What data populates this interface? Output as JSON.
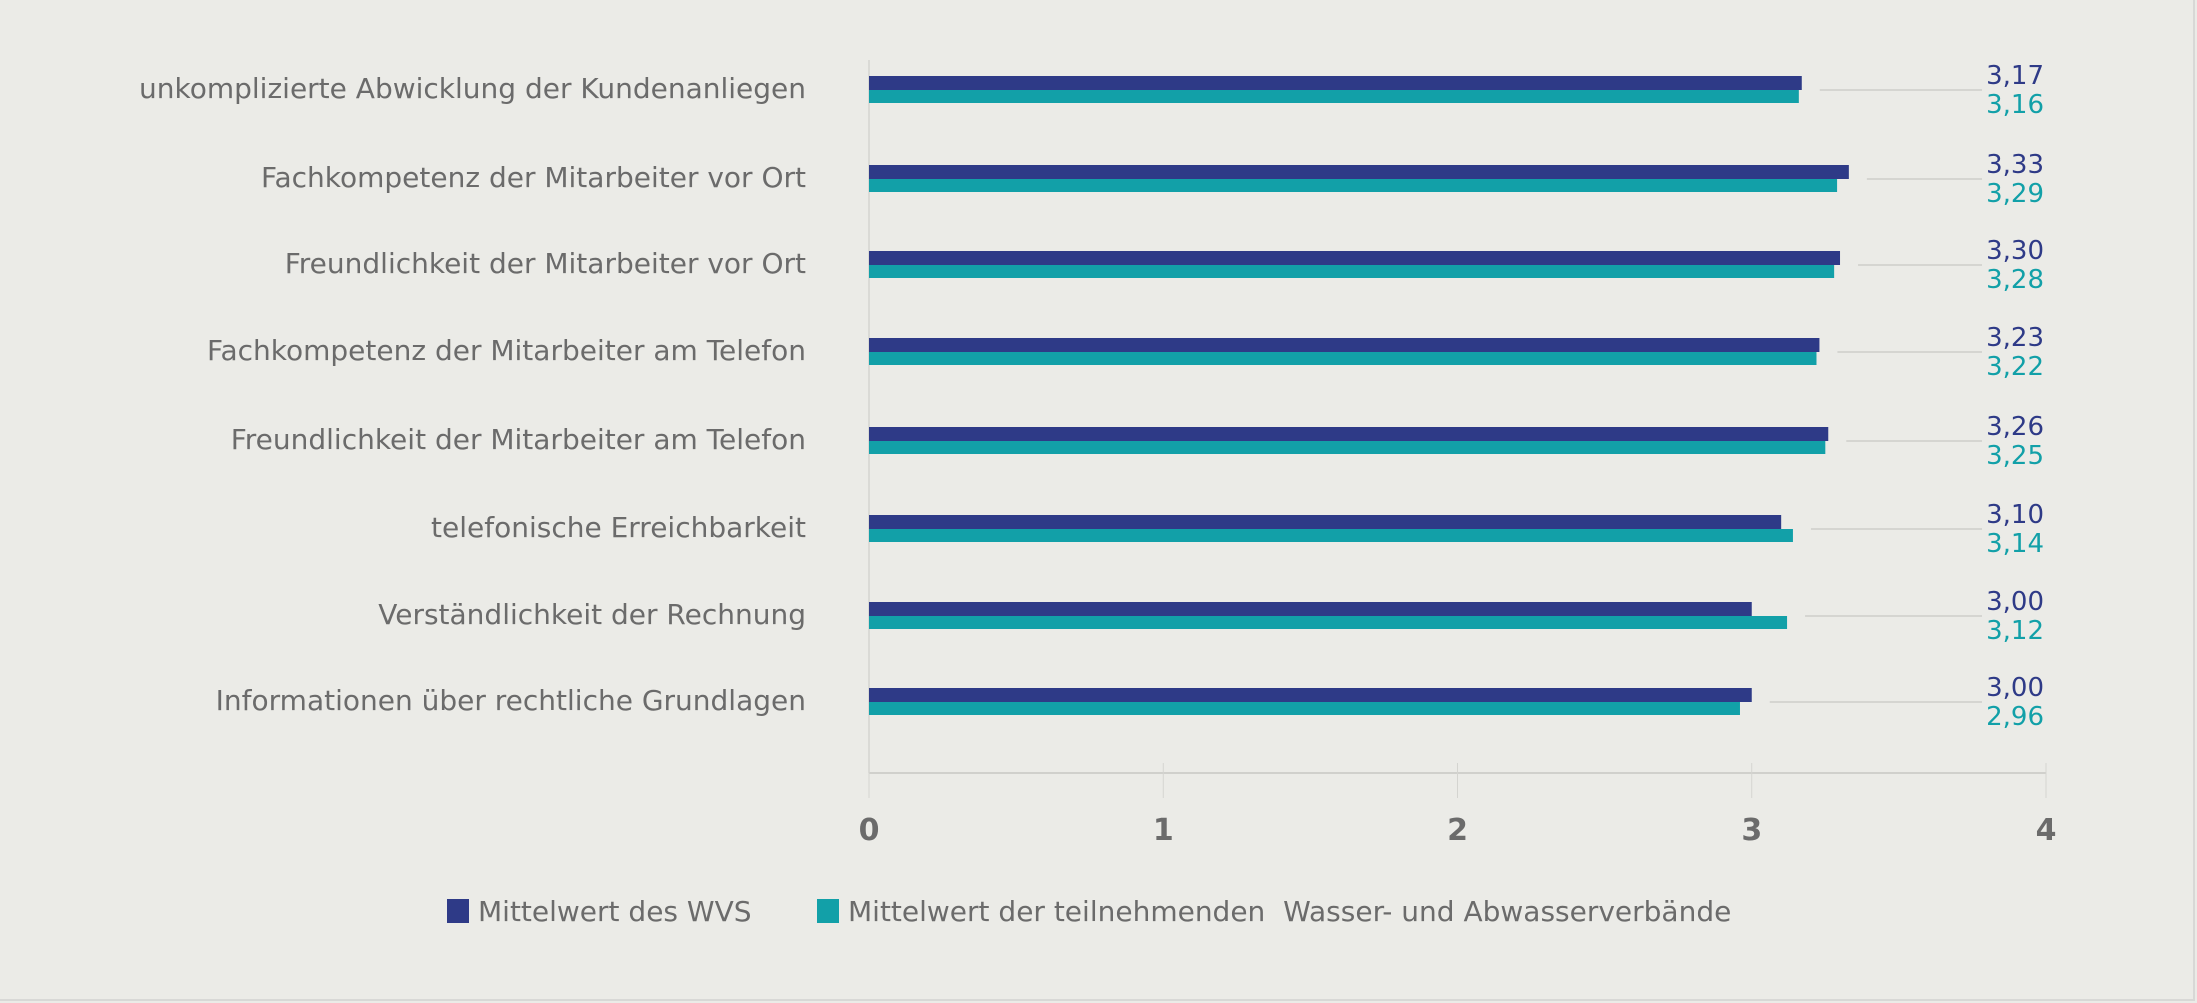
{
  "chart_data": {
    "type": "bar",
    "orientation": "horizontal",
    "categories": [
      "unkomplizierte Abwicklung der Kundenanliegen",
      "Fachkompetenz der Mitarbeiter vor Ort",
      "Freundlichkeit der Mitarbeiter vor Ort",
      "Fachkompetenz der Mitarbeiter am Telefon",
      "Freundlichkeit der Mitarbeiter am Telefon",
      "telefonische Erreichbarkeit",
      "Verständlichkeit der Rechnung",
      "Informationen über rechtliche Grundlagen"
    ],
    "series": [
      {
        "name": "Mittelwert des WVS",
        "color": "#2e3a87",
        "values": [
          3.17,
          3.33,
          3.3,
          3.23,
          3.26,
          3.1,
          3.0,
          3.0
        ],
        "labels": [
          "3,17",
          "3,33",
          "3,30",
          "3,23",
          "3,26",
          "3,10",
          "3,00",
          "3,00"
        ]
      },
      {
        "name": "Mittelwert der teilnehmenden  Wasser- und Abwasserverbände",
        "color": "#12a0a8",
        "values": [
          3.16,
          3.29,
          3.28,
          3.22,
          3.25,
          3.14,
          3.12,
          2.96
        ],
        "labels": [
          "3,16",
          "3,29",
          "3,28",
          "3,22",
          "3,25",
          "3,14",
          "3,12",
          "2,96"
        ]
      }
    ],
    "xlim": [
      0,
      4
    ],
    "xticks": [
      "0",
      "1",
      "2",
      "3",
      "4"
    ],
    "grid": false,
    "legend": "bottom",
    "title": "",
    "xlabel": "",
    "ylabel": ""
  }
}
